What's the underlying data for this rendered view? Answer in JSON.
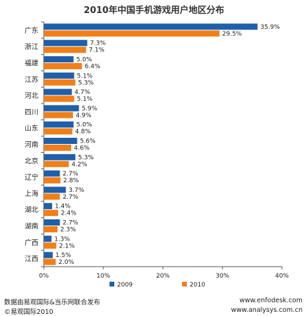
{
  "chart_data": {
    "type": "bar",
    "orientation": "horizontal",
    "title": "2010年中国手机游戏用户地区分布",
    "categories": [
      "广东",
      "浙江",
      "福建",
      "江苏",
      "河北",
      "四川",
      "山东",
      "河南",
      "北京",
      "辽宁",
      "上海",
      "湖北",
      "湖南",
      "广西",
      "江西"
    ],
    "series": [
      {
        "name": "2009",
        "color": "#1f5faa",
        "values": [
          35.9,
          7.3,
          5.0,
          5.1,
          4.7,
          5.9,
          5.0,
          5.6,
          5.3,
          2.7,
          3.7,
          1.4,
          2.7,
          1.3,
          1.5
        ]
      },
      {
        "name": "2010",
        "color": "#f07f1a",
        "values": [
          29.5,
          7.1,
          6.4,
          5.3,
          5.1,
          4.9,
          4.8,
          4.6,
          4.2,
          2.8,
          2.7,
          2.4,
          2.3,
          2.1,
          2.0
        ]
      }
    ],
    "data_labels": [
      [
        "35.9%",
        "7.3%",
        "5.0%",
        "5.1%",
        "4.7%",
        "5.9%",
        "5.0%",
        "5.6%",
        "5.3%",
        "2.7%",
        "3.7%",
        "1.4%",
        "2.7%",
        "1.3%",
        "1.5%"
      ],
      [
        "29.5%",
        "7.1%",
        "6.4%",
        "5.3%",
        "5.1%",
        "4.9%",
        "4.8%",
        "4.6%",
        "4.2%",
        "2.8%",
        "2.7%",
        "2.4%",
        "2.3%",
        "2.1%",
        "2.0%"
      ]
    ],
    "xlim": [
      0,
      40
    ],
    "xticks": [
      0,
      10,
      20,
      30,
      40
    ],
    "xtick_labels": [
      "0%",
      "10%",
      "20%",
      "30%",
      "40%"
    ],
    "grid": false,
    "legend": "bottom"
  },
  "footer": {
    "left_line1": "数据由易观国际&当乐网联合发布",
    "left_line2": "©易观国际2010",
    "right_line1": "www.enfodesk.com",
    "right_line2": "www.analysys.com.cn"
  }
}
